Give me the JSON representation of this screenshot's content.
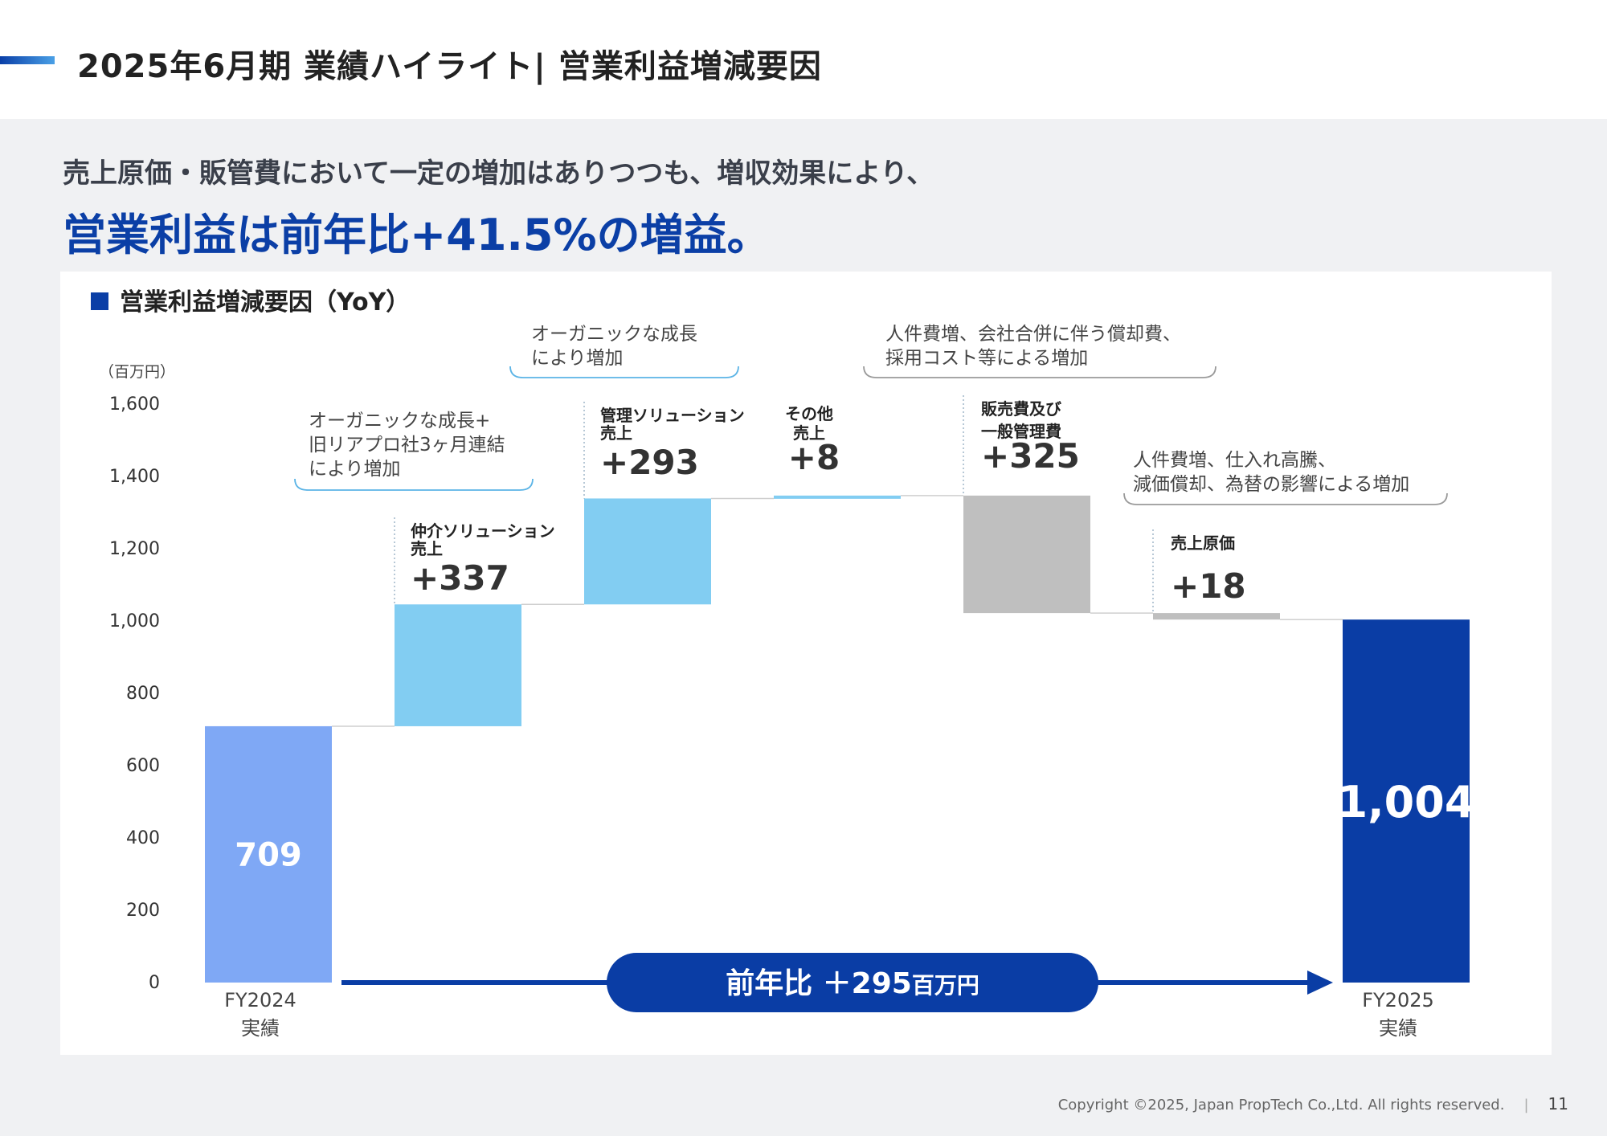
{
  "header": {
    "title": "2025年6月期 業績ハイライト| 営業利益増減要因"
  },
  "lead": {
    "line1": "売上原価・販管費において一定の増加はありつつも、増収効果により、",
    "line2": "営業利益は前年比+41.5%の増益。"
  },
  "colors": {
    "accent": "#0b3fa6",
    "start_bar": "#7fa8f5",
    "increase": "#82cdf2",
    "decrease": "#bfbfbf",
    "end_bar": "#0a3da5"
  },
  "chart_data": {
    "type": "waterfall",
    "title": "■ 営業利益増減要因（YoY）",
    "unit_label": "（百万円）",
    "ylim": [
      0,
      1600
    ],
    "yticks": [
      "0",
      "200",
      "400",
      "600",
      "800",
      "1,000",
      "1,200",
      "1,400",
      "1,600"
    ],
    "ytick_values": [
      0,
      200,
      400,
      600,
      800,
      1000,
      1200,
      1400,
      1600
    ],
    "bars": [
      {
        "kind": "total",
        "base": 0,
        "top": 709,
        "label": "709",
        "category": [
          "FY2024",
          "実績"
        ]
      },
      {
        "kind": "increase",
        "base": 709,
        "top": 1046,
        "name": [
          "仲介ソリューション",
          "売上"
        ],
        "value_label": "+337"
      },
      {
        "kind": "increase",
        "base": 1046,
        "top": 1339,
        "name": [
          "管理ソリューション",
          "売上"
        ],
        "value_label": "+293"
      },
      {
        "kind": "increase",
        "base": 1339,
        "top": 1347,
        "name": [
          "その他",
          "売上"
        ],
        "value_label": "+8"
      },
      {
        "kind": "decrease",
        "base": 1022,
        "top": 1347,
        "name": [
          "販売費及び",
          "一般管理費"
        ],
        "value_label": "+325"
      },
      {
        "kind": "decrease",
        "base": 1004,
        "top": 1022,
        "name": [
          "売上原価"
        ],
        "value_label": "+18"
      },
      {
        "kind": "total",
        "base": 0,
        "top": 1004,
        "label": "1,004",
        "category": [
          "FY2025",
          "実績"
        ]
      }
    ],
    "annotations": [
      {
        "lines": [
          "オーガニックな成長+",
          "旧リアプロ社3ヶ月連結",
          "により増加"
        ]
      },
      {
        "lines": [
          "オーガニックな成長",
          "により増加"
        ]
      },
      {
        "lines": [
          "人件費増、会社合併に伴う償却費、",
          "採用コスト等による増加"
        ]
      },
      {
        "lines": [
          "人件費増、仕入れ高騰、",
          "減価償却、為替の影響による増加"
        ]
      }
    ],
    "yoy": {
      "prefix": "前年比 ＋295",
      "suffix": "百万円"
    }
  },
  "footer": {
    "copyright": "Copyright ©2025, Japan PropTech Co.,Ltd. All rights reserved.",
    "page": "11"
  }
}
